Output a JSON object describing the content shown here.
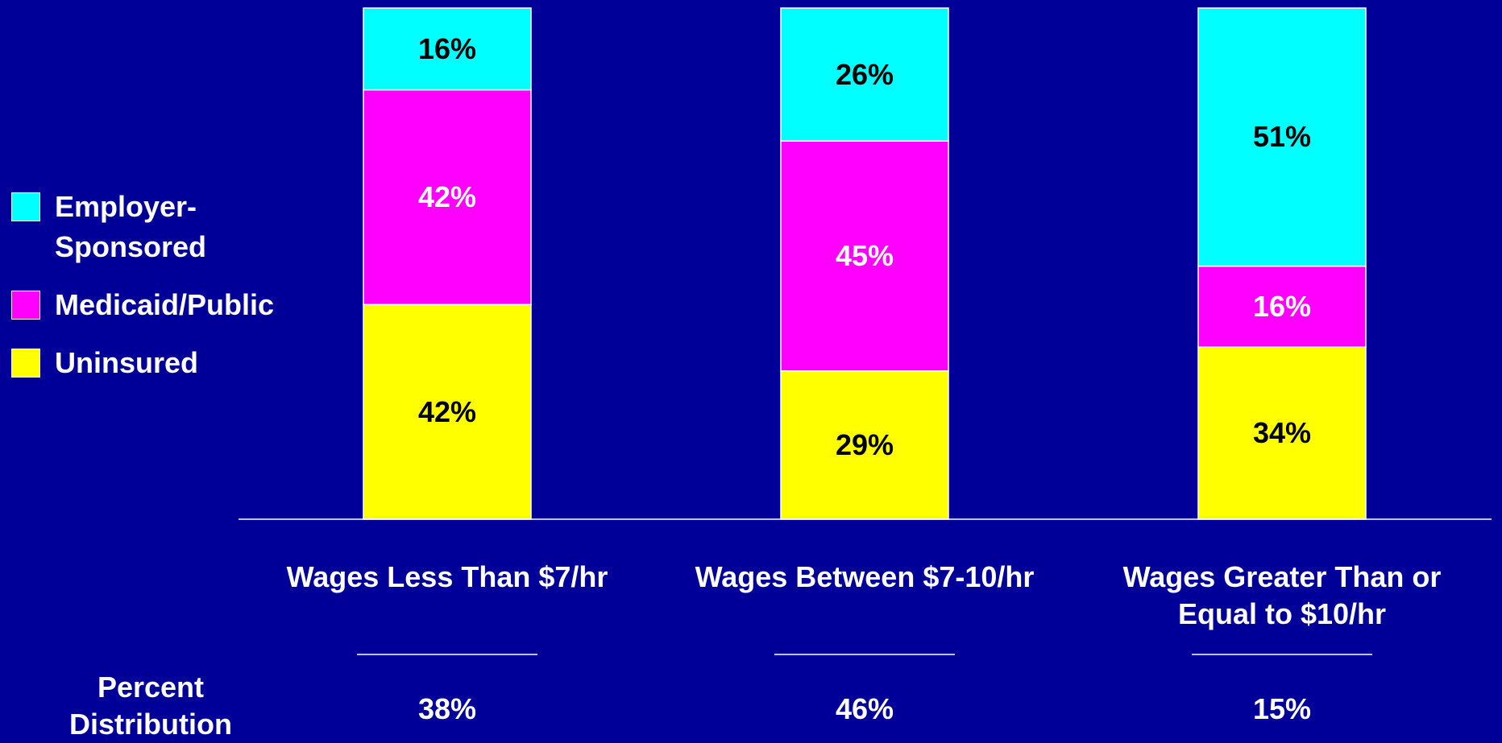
{
  "chart_data": {
    "type": "stacked_bar",
    "categories": [
      "Wages Less Than $7/hr",
      "Wages Between $7-10/hr",
      "Wages Greater Than or Equal to $10/hr"
    ],
    "series": [
      {
        "name": "Uninsured",
        "color": "#ffff00",
        "label_color": "#000000",
        "values": [
          42,
          29,
          34
        ],
        "value_labels": [
          "42%",
          "29%",
          "34%"
        ]
      },
      {
        "name": "Medicaid/Public",
        "color": "#ff00ff",
        "label_color": "#ffffff",
        "values": [
          42,
          45,
          16
        ],
        "value_labels": [
          "42%",
          "45%",
          "16%"
        ]
      },
      {
        "name": "Employer-Sponsored",
        "color": "#00ffff",
        "label_color": "#000000",
        "values": [
          16,
          26,
          51
        ],
        "value_labels": [
          "16%",
          "26%",
          "51%"
        ]
      }
    ],
    "distribution": {
      "label": "Percent Distribution",
      "values": [
        38,
        46,
        15
      ],
      "value_labels": [
        "38%",
        "46%",
        "15%"
      ]
    }
  }
}
